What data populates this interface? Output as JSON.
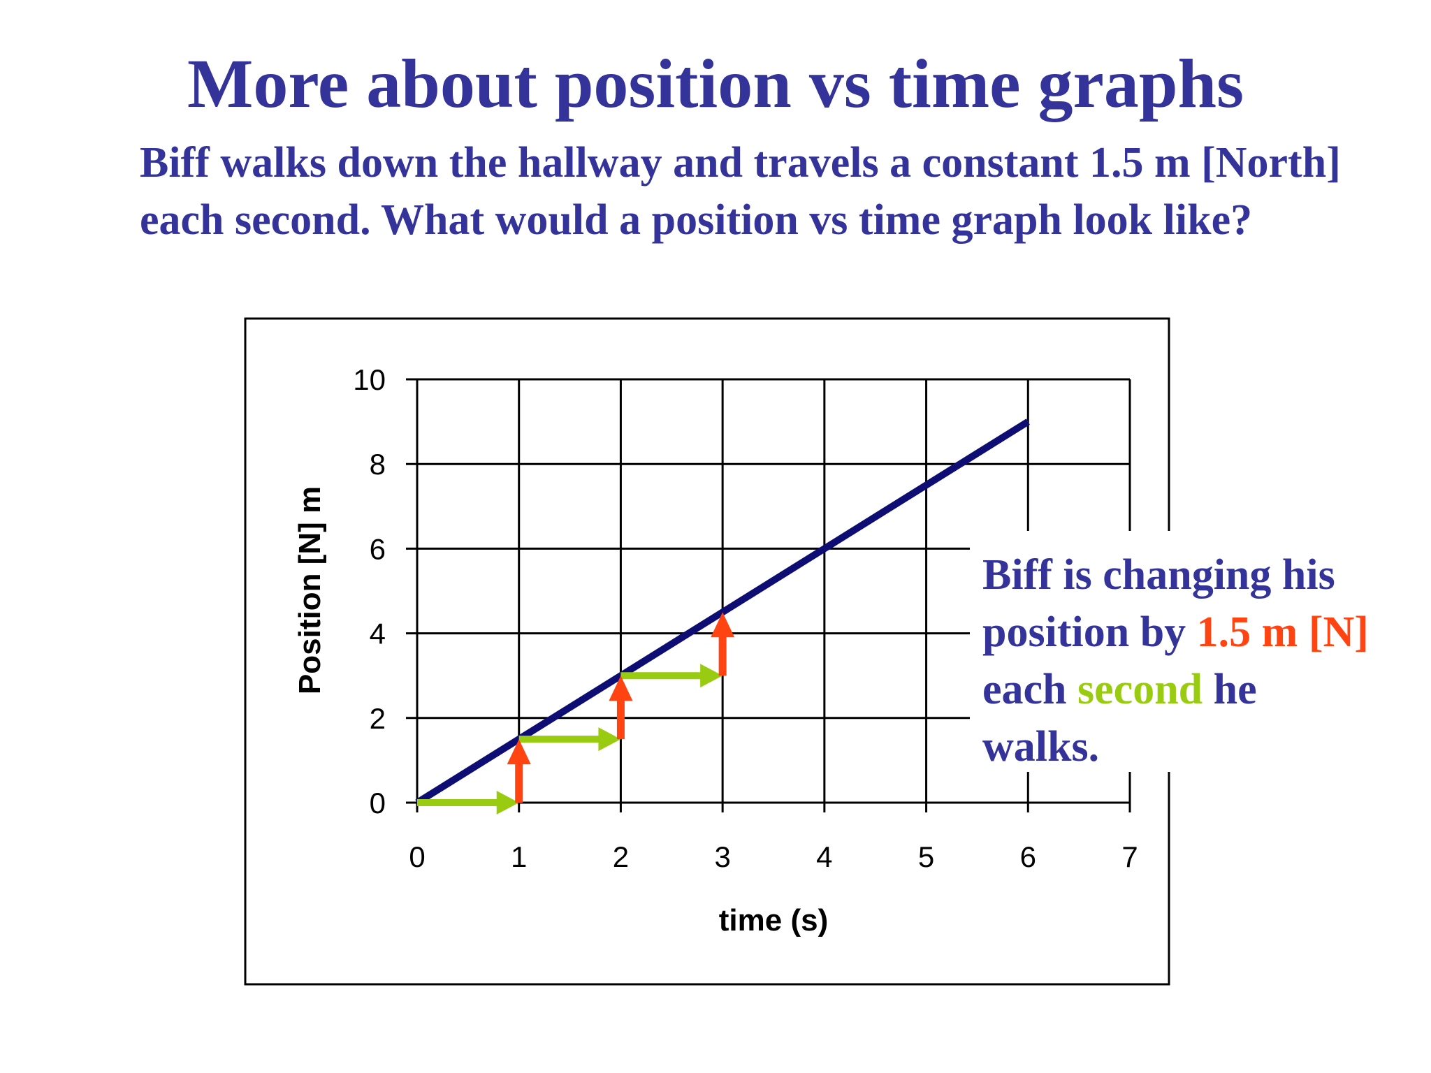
{
  "title": "More about position vs time graphs",
  "question": "Biff walks down the hallway and travels a constant 1.5 m [North] each second.  What would a position vs time graph look like?",
  "callout": {
    "part1": "Biff is changing his position by ",
    "part2": "1.5 m [N]",
    "part3": " each ",
    "part4": "second",
    "part5": " he walks."
  },
  "colors": {
    "title_text": "#333399",
    "line": "#0d0d73",
    "displacement_arrow": "#ff4411",
    "time_arrow": "#99cc11"
  },
  "chart_data": {
    "type": "line",
    "xlabel": "time (s)",
    "ylabel": "Position [N] m",
    "xlim": [
      0,
      7
    ],
    "ylim": [
      0,
      10
    ],
    "x_ticks": [
      0,
      1,
      2,
      3,
      4,
      5,
      6,
      7
    ],
    "y_ticks": [
      0,
      2,
      4,
      6,
      8,
      10
    ],
    "grid": true,
    "series": [
      {
        "x": [
          0,
          6
        ],
        "y": [
          0,
          9
        ]
      }
    ],
    "annotations": {
      "time_arrows": [
        {
          "x0": 0,
          "x1": 1,
          "y": 0
        },
        {
          "x0": 1,
          "x1": 2,
          "y": 1.5
        },
        {
          "x0": 2,
          "x1": 3,
          "y": 3.0
        }
      ],
      "position_arrows": [
        {
          "x": 1,
          "y0": 0,
          "y1": 1.5
        },
        {
          "x": 2,
          "y0": 1.5,
          "y1": 3.0
        },
        {
          "x": 3,
          "y0": 3.0,
          "y1": 4.5
        }
      ]
    }
  }
}
